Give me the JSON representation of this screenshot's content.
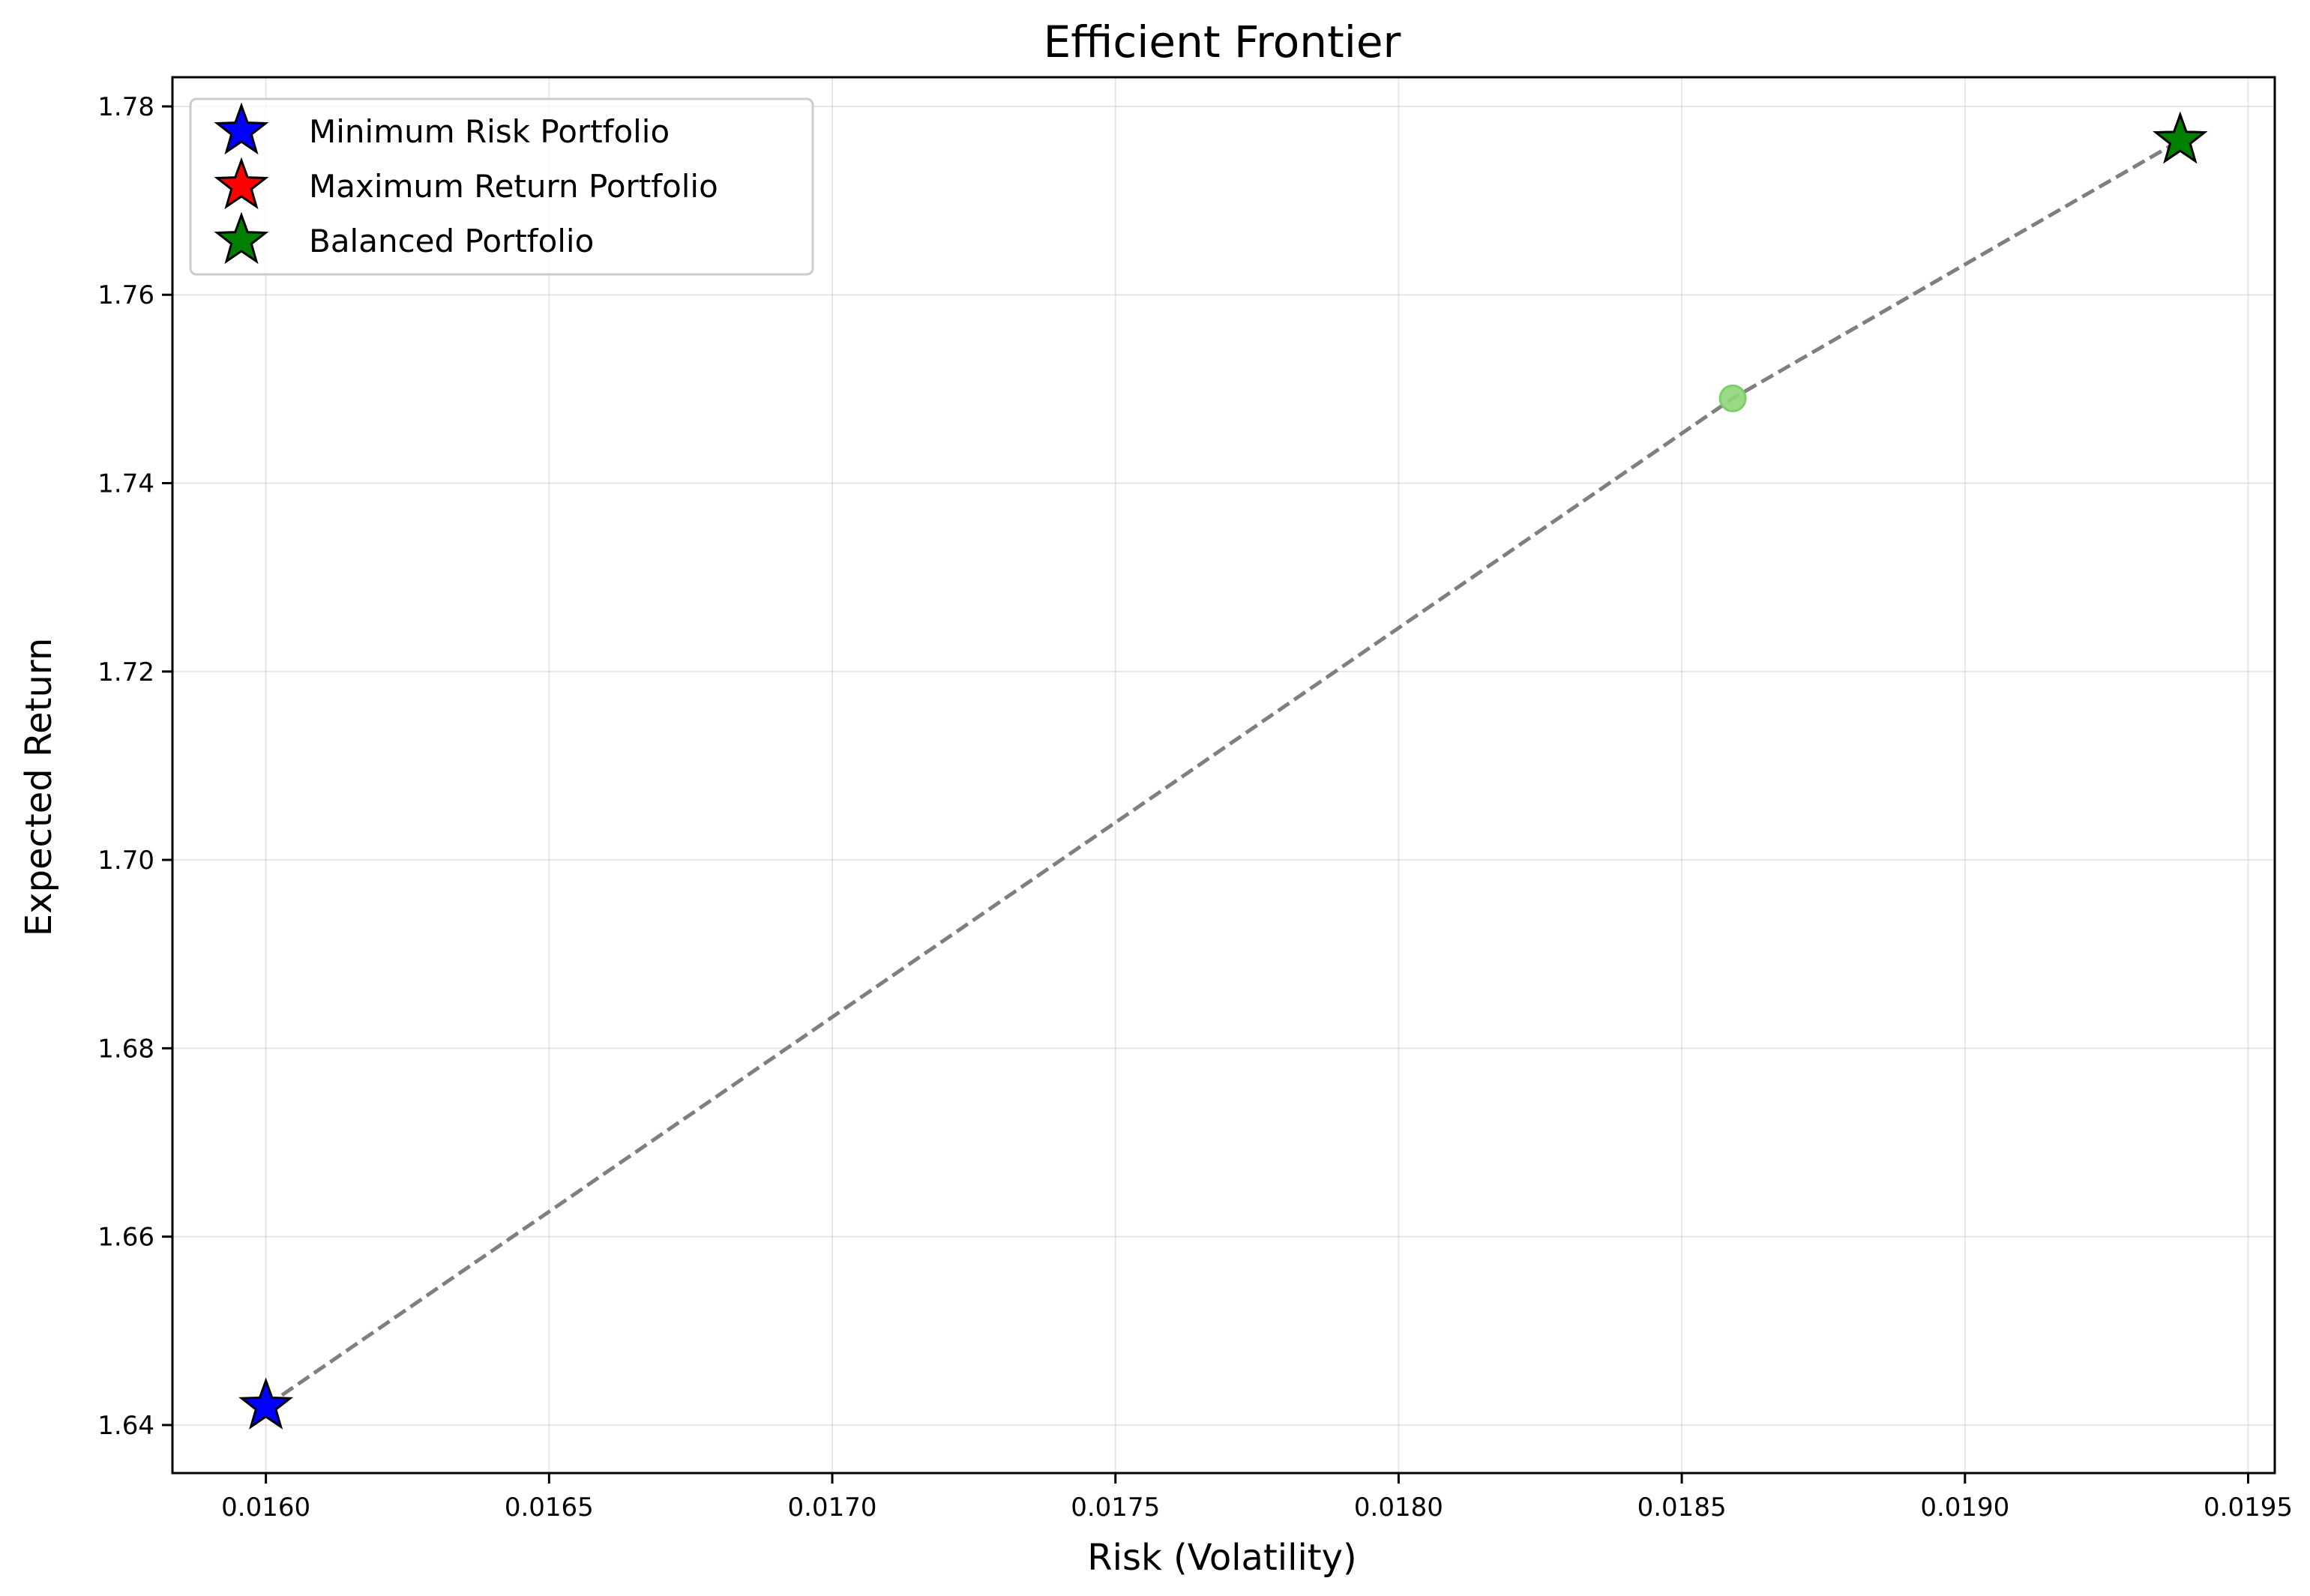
{
  "chart_data": {
    "type": "scatter",
    "title": "Efficient Frontier",
    "xlabel": "Risk (Volatility)",
    "ylabel": "Expected Return",
    "xlim": [
      0.015835,
      0.019547
    ],
    "ylim": [
      1.6349,
      1.7831
    ],
    "xticks": [
      0.016,
      0.0165,
      0.017,
      0.0175,
      0.018,
      0.0185,
      0.019,
      0.0195
    ],
    "xtick_labels": [
      "0.0160",
      "0.0165",
      "0.0170",
      "0.0175",
      "0.0180",
      "0.0185",
      "0.0190",
      "0.0195"
    ],
    "yticks": [
      1.64,
      1.66,
      1.68,
      1.7,
      1.72,
      1.74,
      1.76,
      1.78
    ],
    "ytick_labels": [
      "1.64",
      "1.66",
      "1.68",
      "1.70",
      "1.72",
      "1.74",
      "1.76",
      "1.78"
    ],
    "grid": true,
    "legend_position": "top-left",
    "frontier_line": {
      "style": "dashed",
      "color": "#7f7f7f",
      "x": [
        0.016,
        0.01859,
        0.01938
      ],
      "y": [
        1.642,
        1.749,
        1.7764
      ]
    },
    "frontier_points": [
      {
        "x": 0.01859,
        "y": 1.749,
        "color": "#8fd67a"
      }
    ],
    "series": [
      {
        "name": "Minimum Risk Portfolio",
        "marker": "star",
        "color": "#0000ff",
        "x": 0.016,
        "y": 1.642
      },
      {
        "name": "Maximum Return Portfolio",
        "marker": "star",
        "color": "#ff0000",
        "x": 0.01938,
        "y": 1.7764
      },
      {
        "name": "Balanced Portfolio",
        "marker": "star",
        "color": "#008000",
        "x": 0.01938,
        "y": 1.7764
      }
    ]
  }
}
